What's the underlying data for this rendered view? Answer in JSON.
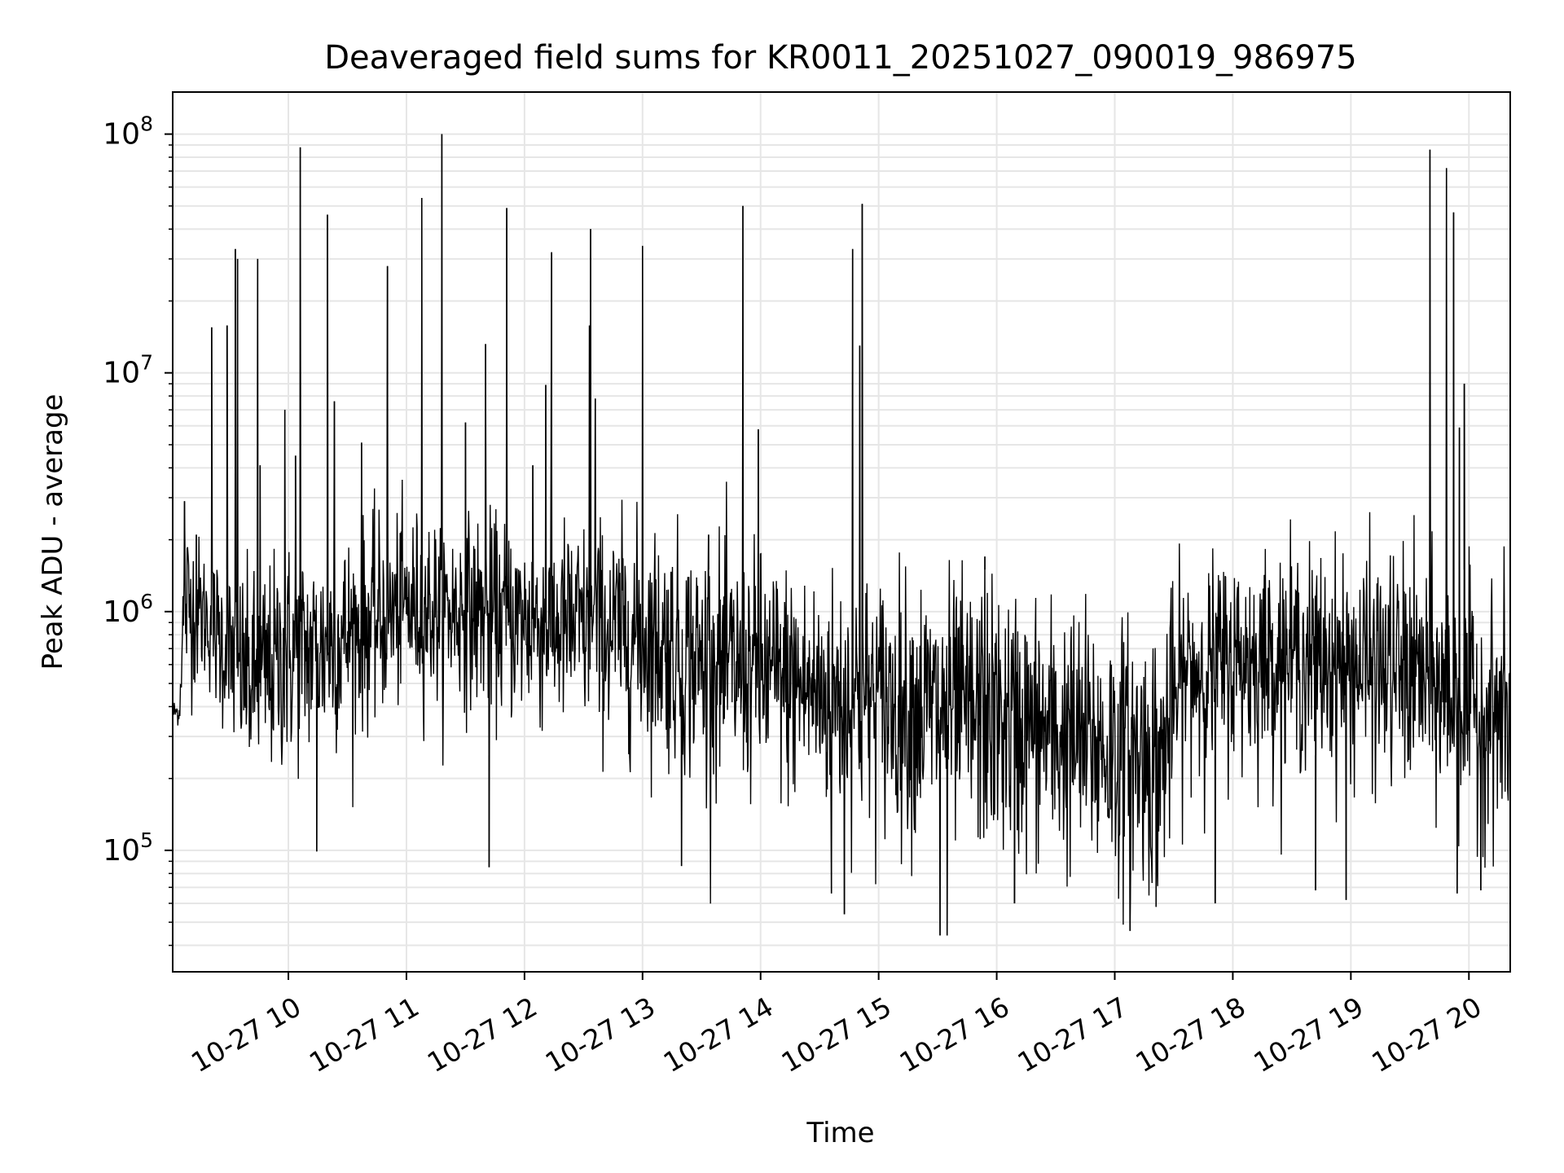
{
  "chart_data": {
    "type": "line",
    "title": "Deaveraged field sums for KR0011_20251027_090019_986975",
    "xlabel": "Time",
    "ylabel": "Peak ADU - average",
    "yscale": "log",
    "x_unit": "hours since 2025-10-27 00:00",
    "xlim": [
      9.02,
      20.35
    ],
    "ylim": [
      31000,
      150000000
    ],
    "grid": true,
    "line_color": "#000000",
    "grid_color": "#e6e6e6",
    "x_ticks": [
      {
        "value": 10,
        "label": "10-27 10"
      },
      {
        "value": 11,
        "label": "10-27 11"
      },
      {
        "value": 12,
        "label": "10-27 12"
      },
      {
        "value": 13,
        "label": "10-27 13"
      },
      {
        "value": 14,
        "label": "10-27 14"
      },
      {
        "value": 15,
        "label": "10-27 15"
      },
      {
        "value": 16,
        "label": "10-27 16"
      },
      {
        "value": 17,
        "label": "10-27 17"
      },
      {
        "value": 18,
        "label": "10-27 18"
      },
      {
        "value": 19,
        "label": "10-27 19"
      },
      {
        "value": 20,
        "label": "10-27 20"
      }
    ],
    "y_ticks": [
      {
        "value": 100000,
        "base": "10",
        "exp": "5"
      },
      {
        "value": 1000000,
        "base": "10",
        "exp": "6"
      },
      {
        "value": 10000000,
        "base": "10",
        "exp": "7"
      },
      {
        "value": 100000000,
        "base": "10",
        "exp": "8"
      }
    ],
    "baseline_profile": {
      "x": [
        9.02,
        9.08,
        9.12,
        9.3,
        9.5,
        9.7,
        10.0,
        10.3,
        10.6,
        11.0,
        11.5,
        12.0,
        12.5,
        13.0,
        13.5,
        14.0,
        14.5,
        15.0,
        15.5,
        16.0,
        16.5,
        17.0,
        17.4,
        17.6,
        18.0,
        18.5,
        19.0,
        19.5,
        20.0,
        20.35
      ],
      "median": [
        380000,
        380000,
        1100000,
        950000,
        650000,
        500000,
        650000,
        700000,
        850000,
        1050000,
        1000000,
        900000,
        850000,
        800000,
        600000,
        550000,
        450000,
        420000,
        380000,
        350000,
        300000,
        260000,
        240000,
        550000,
        620000,
        650000,
        600000,
        550000,
        400000,
        350000
      ],
      "spread": [
        0.05,
        0.05,
        0.35,
        0.25,
        0.35,
        0.4,
        0.42,
        0.4,
        0.38,
        0.35,
        0.35,
        0.38,
        0.4,
        0.42,
        0.45,
        0.45,
        0.45,
        0.48,
        0.5,
        0.5,
        0.5,
        0.5,
        0.5,
        0.4,
        0.4,
        0.4,
        0.42,
        0.45,
        0.45,
        0.45
      ]
    },
    "spikes": [
      {
        "x": 9.12,
        "y": 2900000
      },
      {
        "x": 9.22,
        "y": 2100000
      },
      {
        "x": 9.35,
        "y": 15500000
      },
      {
        "x": 9.48,
        "y": 15800000
      },
      {
        "x": 9.55,
        "y": 33000000
      },
      {
        "x": 9.57,
        "y": 30000000
      },
      {
        "x": 9.74,
        "y": 30000000
      },
      {
        "x": 9.76,
        "y": 4100000
      },
      {
        "x": 9.97,
        "y": 7000000
      },
      {
        "x": 10.06,
        "y": 4500000
      },
      {
        "x": 10.1,
        "y": 88000000
      },
      {
        "x": 10.33,
        "y": 46000000
      },
      {
        "x": 10.39,
        "y": 7600000
      },
      {
        "x": 10.62,
        "y": 5100000
      },
      {
        "x": 10.84,
        "y": 28000000
      },
      {
        "x": 11.13,
        "y": 54000000
      },
      {
        "x": 11.3,
        "y": 100000000
      },
      {
        "x": 11.5,
        "y": 6200000
      },
      {
        "x": 11.67,
        "y": 13200000
      },
      {
        "x": 11.85,
        "y": 49000000
      },
      {
        "x": 12.07,
        "y": 4100000
      },
      {
        "x": 12.18,
        "y": 8900000
      },
      {
        "x": 12.23,
        "y": 32000000
      },
      {
        "x": 12.55,
        "y": 15800000
      },
      {
        "x": 12.56,
        "y": 40000000
      },
      {
        "x": 12.6,
        "y": 7800000
      },
      {
        "x": 13.0,
        "y": 34000000
      },
      {
        "x": 13.56,
        "y": 2100000
      },
      {
        "x": 13.85,
        "y": 50000000
      },
      {
        "x": 13.98,
        "y": 5800000
      },
      {
        "x": 14.78,
        "y": 33000000
      },
      {
        "x": 14.84,
        "y": 13000000
      },
      {
        "x": 14.86,
        "y": 51000000
      },
      {
        "x": 15.9,
        "y": 1700000
      },
      {
        "x": 19.67,
        "y": 86000000
      },
      {
        "x": 19.81,
        "y": 72000000
      },
      {
        "x": 19.87,
        "y": 47000000
      },
      {
        "x": 19.96,
        "y": 9000000
      },
      {
        "x": 19.92,
        "y": 5900000
      }
    ],
    "dips": [
      {
        "x": 10.24,
        "y": 99000
      },
      {
        "x": 11.7,
        "y": 85000
      },
      {
        "x": 13.33,
        "y": 86000
      },
      {
        "x": 14.6,
        "y": 66000
      },
      {
        "x": 14.71,
        "y": 54000
      },
      {
        "x": 15.52,
        "y": 44000
      },
      {
        "x": 15.58,
        "y": 44000
      },
      {
        "x": 16.15,
        "y": 60000
      },
      {
        "x": 17.13,
        "y": 46000
      },
      {
        "x": 17.35,
        "y": 58000
      },
      {
        "x": 17.85,
        "y": 60000
      },
      {
        "x": 18.7,
        "y": 68000
      },
      {
        "x": 18.96,
        "y": 62000
      },
      {
        "x": 19.9,
        "y": 66000
      },
      {
        "x": 20.1,
        "y": 68000
      }
    ]
  }
}
